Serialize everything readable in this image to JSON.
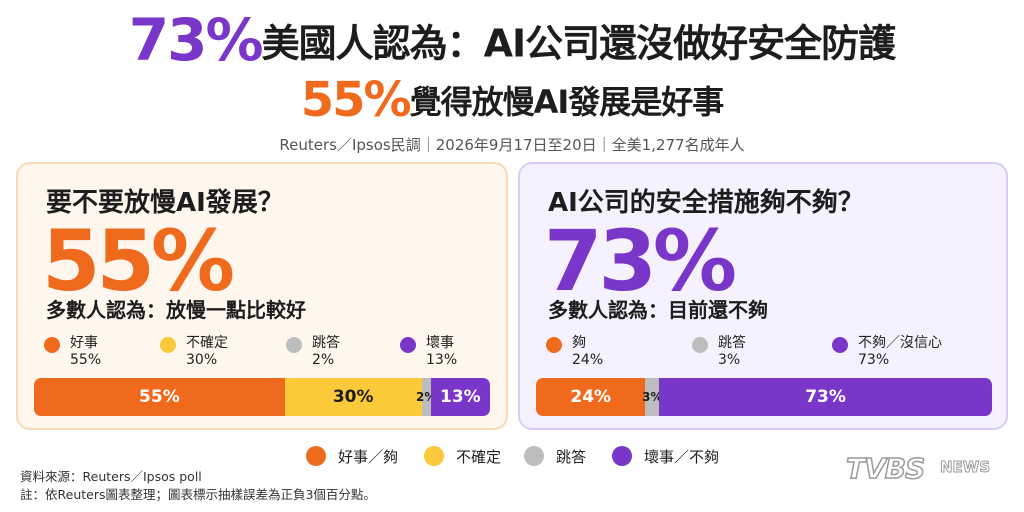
{
  "headline": {
    "line1_pct": "73%",
    "line1_text": "美國人認為：AI公司還沒做好安全防護",
    "line2_pct": "55%",
    "line2_text": "覺得放慢AI發展是好事"
  },
  "source_line": "Reuters／Ipsos民調｜2026年9月17日至20日｜全美1,277名成年人",
  "colors": {
    "good": "#ef6a1c",
    "unsure": "#fcc93a",
    "skip": "#bdbdbd",
    "bad": "#7a35c9"
  },
  "chart_data": [
    {
      "type": "bar",
      "title": "要不要放慢AI發展？",
      "headline_value": "55%",
      "subtitle": "多數人認為：放慢一點比較好",
      "stacked": true,
      "orientation": "horizontal",
      "legend": [
        {
          "name": "好事",
          "value_label": "55%"
        },
        {
          "name": "不確定",
          "value_label": "30%"
        },
        {
          "name": "跳答",
          "value_label": "2%"
        },
        {
          "name": "壞事",
          "value_label": "13%"
        }
      ],
      "series": [
        {
          "name": "好事",
          "value": 55,
          "label": "55%",
          "color": "#ef6a1c"
        },
        {
          "name": "不確定",
          "value": 30,
          "label": "30%",
          "color": "#fcc93a"
        },
        {
          "name": "跳答",
          "value": 2,
          "label": "2%",
          "color": "#bdbdbd"
        },
        {
          "name": "壞事",
          "value": 13,
          "label": "13%",
          "color": "#7a35c9"
        }
      ]
    },
    {
      "type": "bar",
      "title": "AI公司的安全措施夠不夠？",
      "headline_value": "73%",
      "subtitle": "多數人認為：目前還不夠",
      "stacked": true,
      "orientation": "horizontal",
      "legend": [
        {
          "name": "夠",
          "value_label": "24%"
        },
        {
          "name": "跳答",
          "value_label": "3%"
        },
        {
          "name": "不夠／沒信心",
          "value_label": "73%"
        }
      ],
      "series": [
        {
          "name": "夠",
          "value": 24,
          "label": "24%",
          "color": "#ef6a1c"
        },
        {
          "name": "跳答",
          "value": 3,
          "label": "3%",
          "color": "#bdbdbd"
        },
        {
          "name": "不夠／沒信心",
          "value": 73,
          "label": "73%",
          "color": "#7a35c9"
        }
      ]
    }
  ],
  "bottom_legend": [
    {
      "label": "好事／夠",
      "color": "#ef6a1c"
    },
    {
      "label": "不確定",
      "color": "#fcc93a"
    },
    {
      "label": "跳答",
      "color": "#bdbdbd"
    },
    {
      "label": "壞事／不夠",
      "color": "#7a35c9"
    }
  ],
  "notes": {
    "source": "資料來源：Reuters／Ipsos poll",
    "note": "註：依Reuters圖表整理；圖表標示抽樣誤差為正負3個百分點。"
  },
  "logo": {
    "brand": "TVBS",
    "suffix": "NEWS"
  }
}
